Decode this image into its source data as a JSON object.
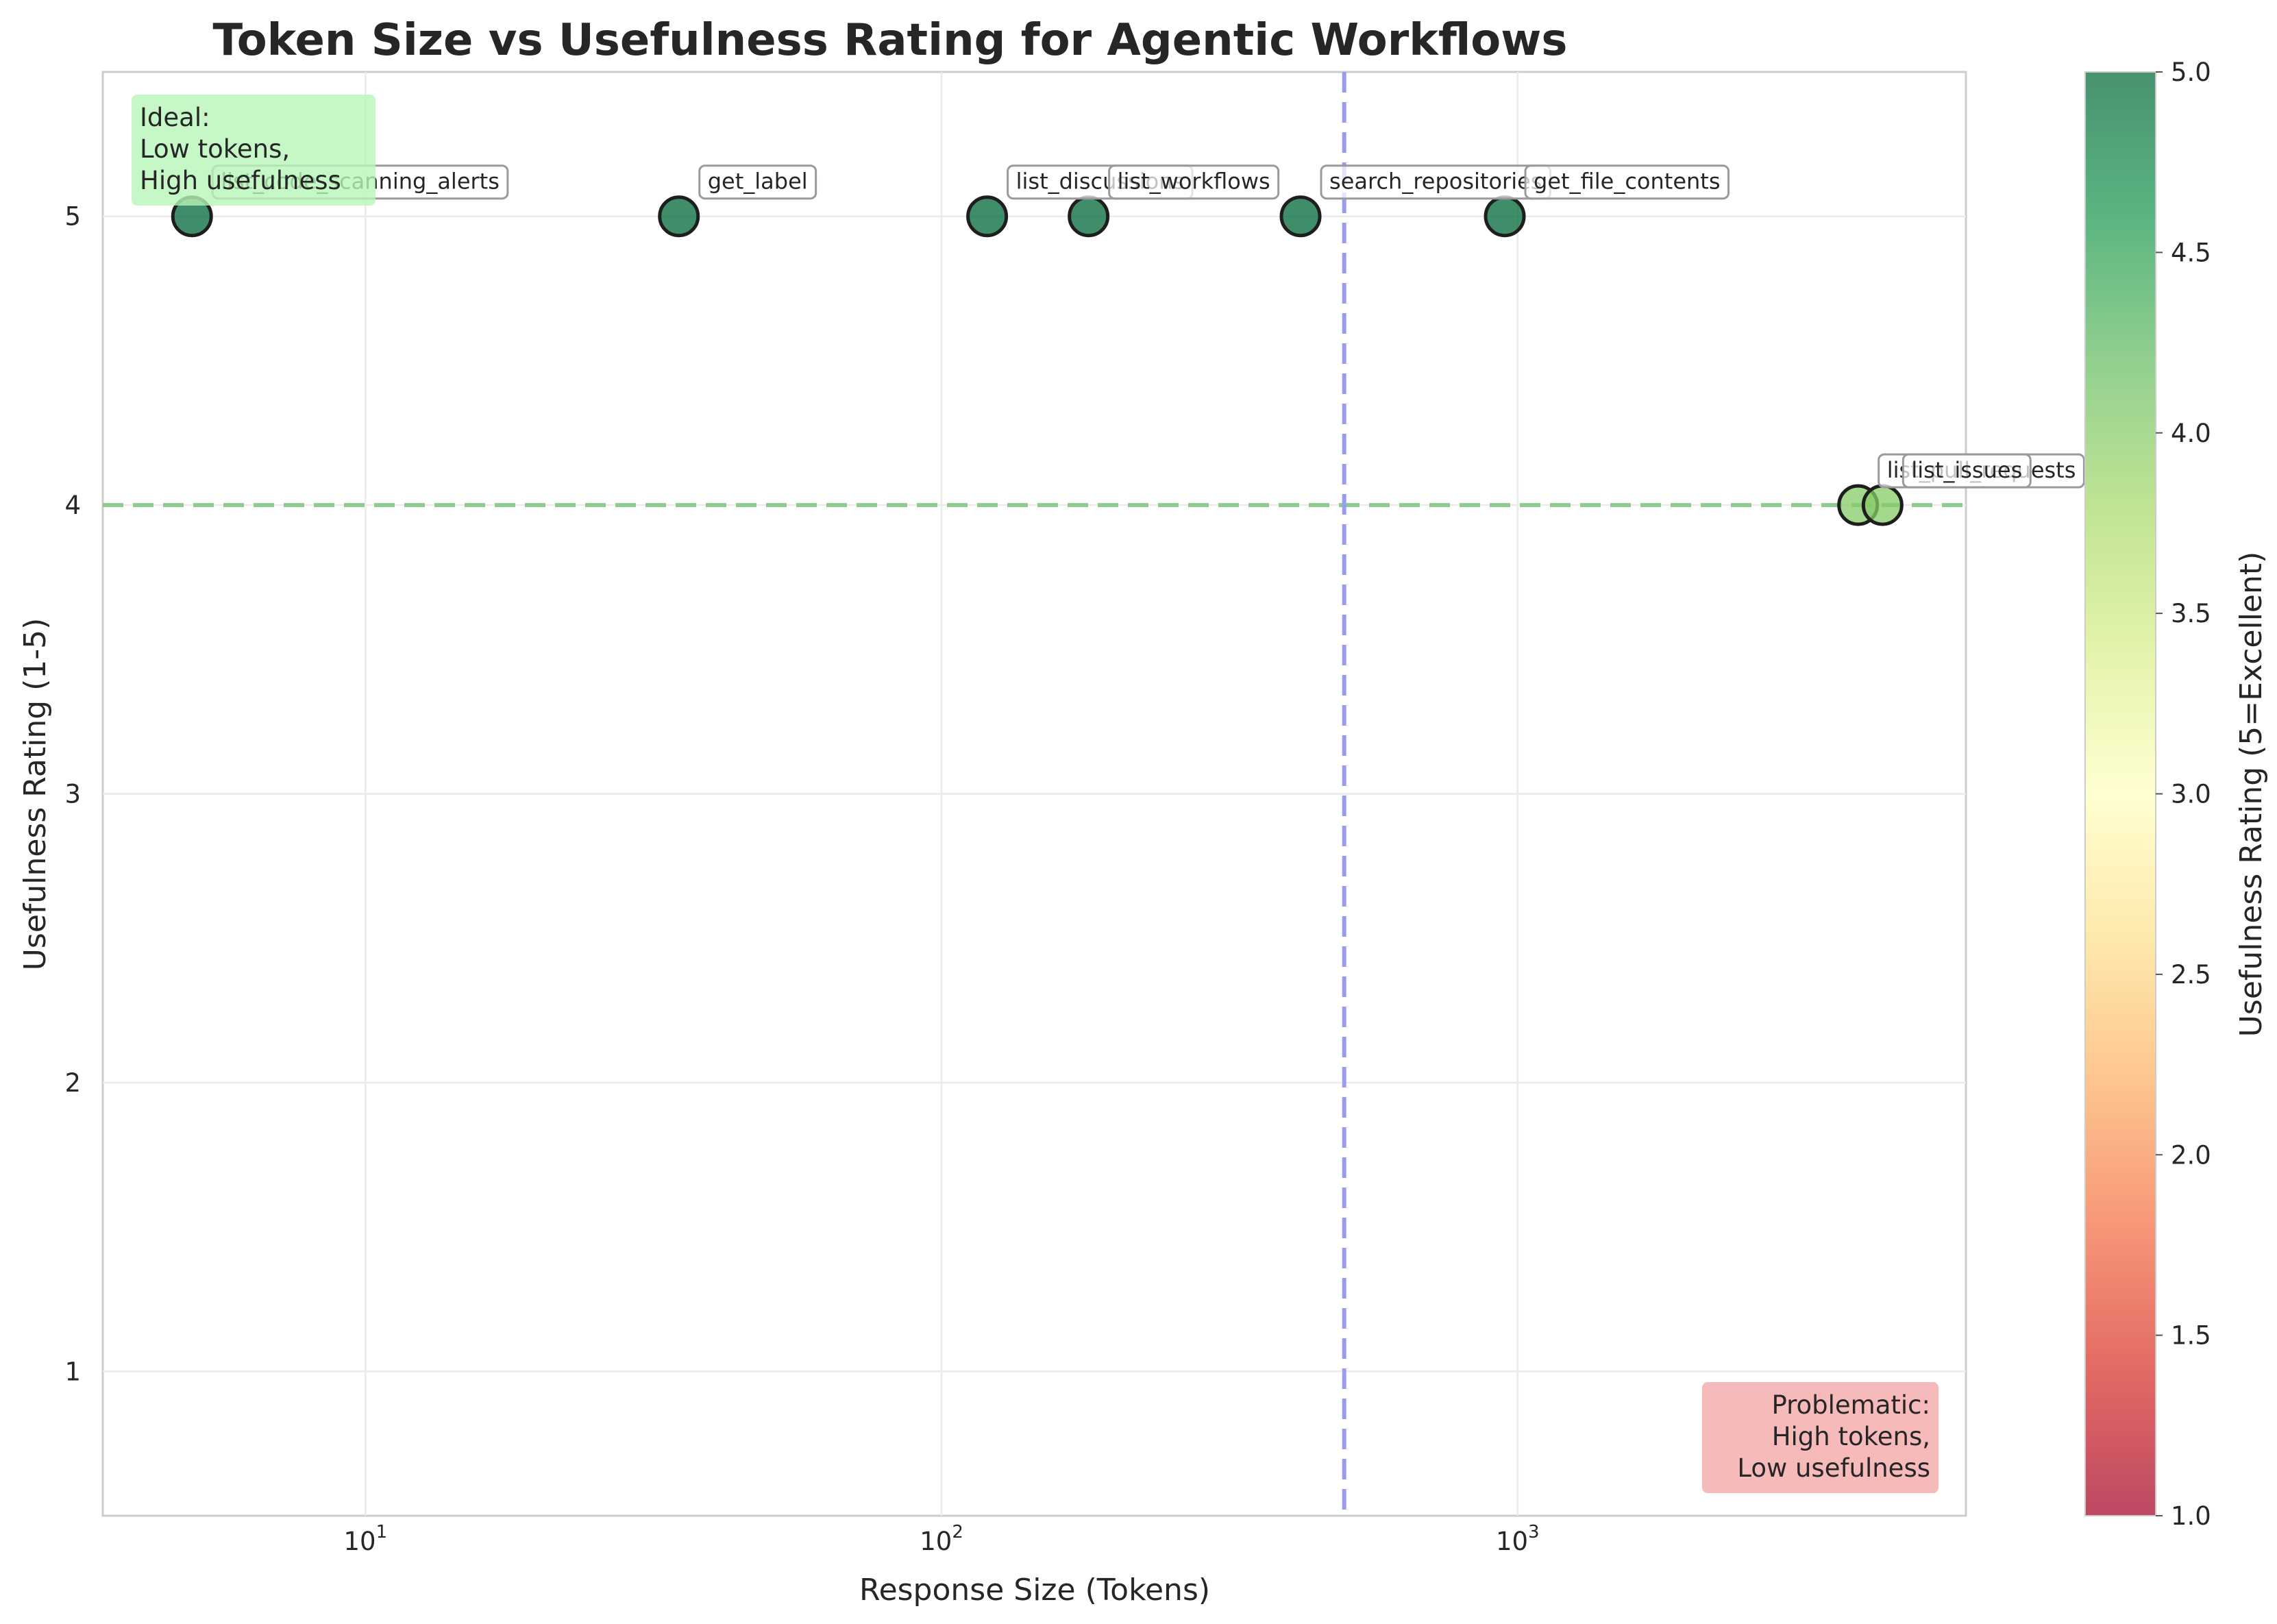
{
  "chart_data": {
    "type": "scatter",
    "title": "Token Size vs Usefulness Rating for Agentic Workflows",
    "xlabel": "Response Size (Tokens)",
    "ylabel": "Usefulness Rating (1-5)",
    "x_scale": "log",
    "xlim": [
      3.5,
      6000
    ],
    "ylim": [
      0.5,
      5.5
    ],
    "x_ticks": [
      {
        "value": 10,
        "base": "10",
        "exp": "1"
      },
      {
        "value": 100,
        "base": "10",
        "exp": "2"
      },
      {
        "value": 1000,
        "base": "10",
        "exp": "3"
      }
    ],
    "y_ticks": [
      "1",
      "2",
      "3",
      "4",
      "5"
    ],
    "grid": true,
    "points": [
      {
        "label": "list_code_scanning_alerts",
        "x": 5,
        "y": 5
      },
      {
        "label": "get_label",
        "x": 35,
        "y": 5
      },
      {
        "label": "list_discussions",
        "x": 120,
        "y": 5
      },
      {
        "label": "list_workflows",
        "x": 180,
        "y": 5
      },
      {
        "label": "search_repositories",
        "x": 420,
        "y": 5
      },
      {
        "label": "get_file_contents",
        "x": 950,
        "y": 5
      },
      {
        "label": "list_pull_requests",
        "x": 3900,
        "y": 4
      },
      {
        "label": "list_issues",
        "x": 4300,
        "y": 4
      }
    ],
    "reference_lines": {
      "horizontal": {
        "y": 4,
        "color": "#8fca8f",
        "style": "dashed"
      },
      "vertical": {
        "x": 500,
        "color": "#9b9bf0",
        "style": "dashed"
      }
    },
    "colorbar": {
      "label": "Usefulness Rating (5=Excellent)",
      "range": [
        1.0,
        5.0
      ],
      "ticks": [
        "1.0",
        "1.5",
        "2.0",
        "2.5",
        "3.0",
        "3.5",
        "4.0",
        "4.5",
        "5.0"
      ],
      "colormap": "RdYlGn",
      "stops": [
        "#a50026",
        "#d73027",
        "#f46d43",
        "#fdae61",
        "#fee08b",
        "#ffffbf",
        "#d9ef8b",
        "#a6d96a",
        "#66bd63",
        "#1a9850",
        "#006837"
      ]
    },
    "annotations": {
      "ideal": {
        "lines": [
          "Ideal:",
          "Low tokens,",
          "High usefulness"
        ],
        "color": "#b8f5b8"
      },
      "problematic": {
        "lines": [
          "Problematic:",
          "High tokens,",
          "Low usefulness"
        ],
        "color": "#f4a9a9"
      }
    }
  }
}
